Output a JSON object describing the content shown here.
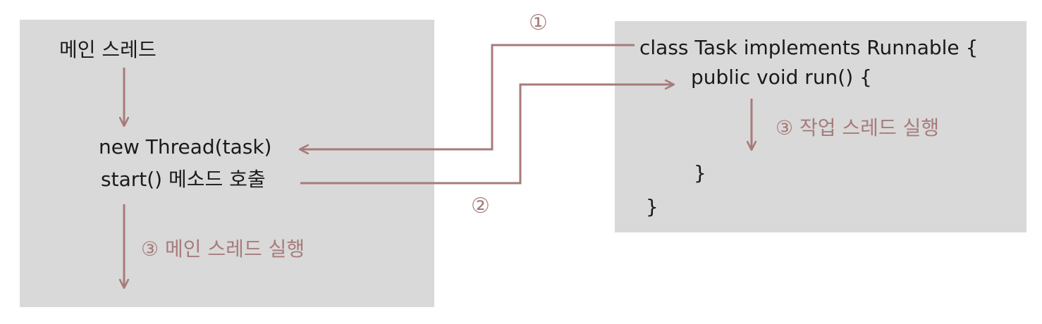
{
  "colors": {
    "panel": "#d9d9d9",
    "accent": "#a77b7b",
    "text": "#1a1a1a"
  },
  "main_thread": {
    "title": "메인 스레드",
    "create_line": "new Thread(task)",
    "start_line": "start() 메소드 호출",
    "run_label": "③ 메인 스레드 실행"
  },
  "task_class": {
    "class_line": "class Task implements Runnable {",
    "method_line": "public void run() {",
    "run_label": "③ 작업 스레드 실행",
    "method_close": "}",
    "class_close": "}"
  },
  "steps": {
    "step1": "①",
    "step2": "②"
  }
}
